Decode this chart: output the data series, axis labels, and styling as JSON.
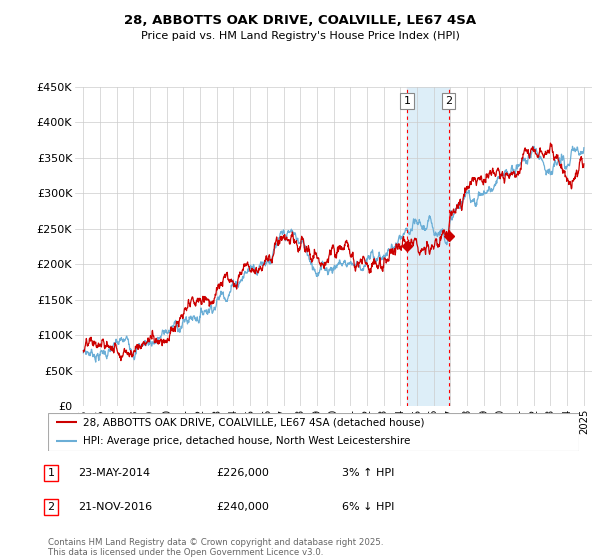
{
  "title_line1": "28, ABBOTTS OAK DRIVE, COALVILLE, LE67 4SA",
  "title_line2": "Price paid vs. HM Land Registry's House Price Index (HPI)",
  "ylim": [
    0,
    450000
  ],
  "yticks": [
    0,
    50000,
    100000,
    150000,
    200000,
    250000,
    300000,
    350000,
    400000,
    450000
  ],
  "ytick_labels": [
    "£0",
    "£50K",
    "£100K",
    "£150K",
    "£200K",
    "£250K",
    "£300K",
    "£350K",
    "£400K",
    "£450K"
  ],
  "legend_line1": "28, ABBOTTS OAK DRIVE, COALVILLE, LE67 4SA (detached house)",
  "legend_line2": "HPI: Average price, detached house, North West Leicestershire",
  "sale1_date": "23-MAY-2014",
  "sale1_price": "£226,000",
  "sale1_hpi": "3% ↑ HPI",
  "sale2_date": "21-NOV-2016",
  "sale2_price": "£240,000",
  "sale2_hpi": "6% ↓ HPI",
  "footer": "Contains HM Land Registry data © Crown copyright and database right 2025.\nThis data is licensed under the Open Government Licence v3.0.",
  "hpi_color": "#6baed6",
  "price_color": "#cc0000",
  "shade_color": "#ddeef8",
  "marker_color": "#cc0000",
  "vline1_x": 2014.39,
  "vline2_x": 2016.89,
  "marker1_y": 226000,
  "marker2_y": 240000,
  "background_color": "#ffffff",
  "grid_color": "#cccccc",
  "xlim_left": 1994.5,
  "xlim_right": 2025.5
}
